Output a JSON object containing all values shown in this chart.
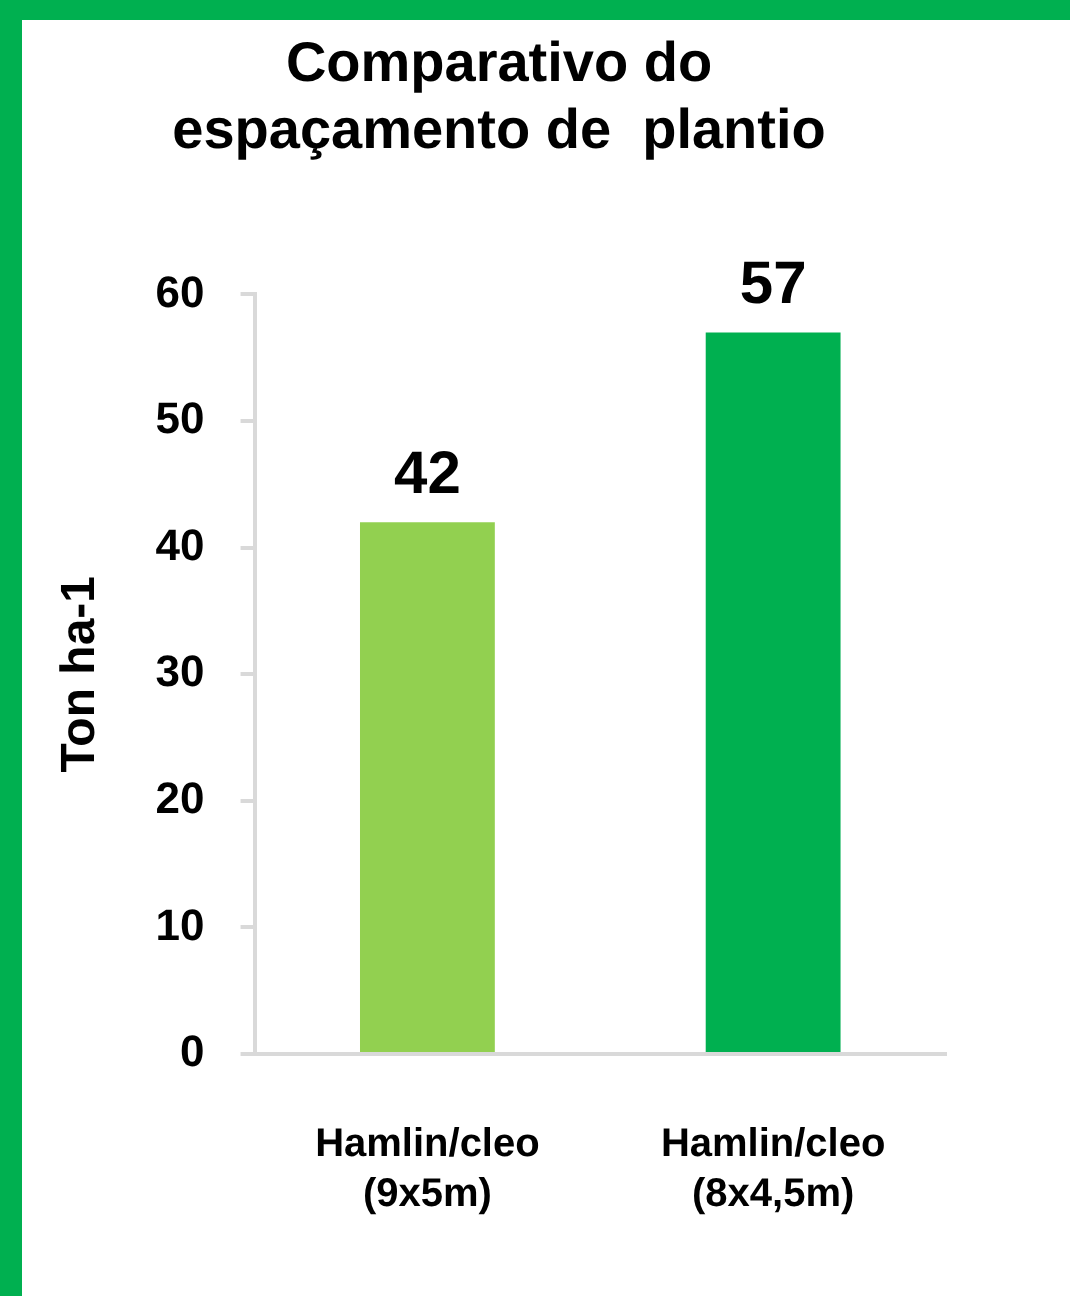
{
  "chart_data": {
    "type": "bar",
    "title": "Comparativo do espaçamento de  plantio",
    "ylabel": "Ton ha-1",
    "categories": [
      "Hamlin/cleo (9x5m)",
      "Hamlin/cleo (8x4,5m)"
    ],
    "values": [
      42,
      57
    ],
    "colors": [
      "#92d050",
      "#00b050"
    ],
    "ylim": [
      0,
      60
    ],
    "yticks": [
      0,
      10,
      20,
      30,
      40,
      50,
      60
    ],
    "data_labels": true
  }
}
